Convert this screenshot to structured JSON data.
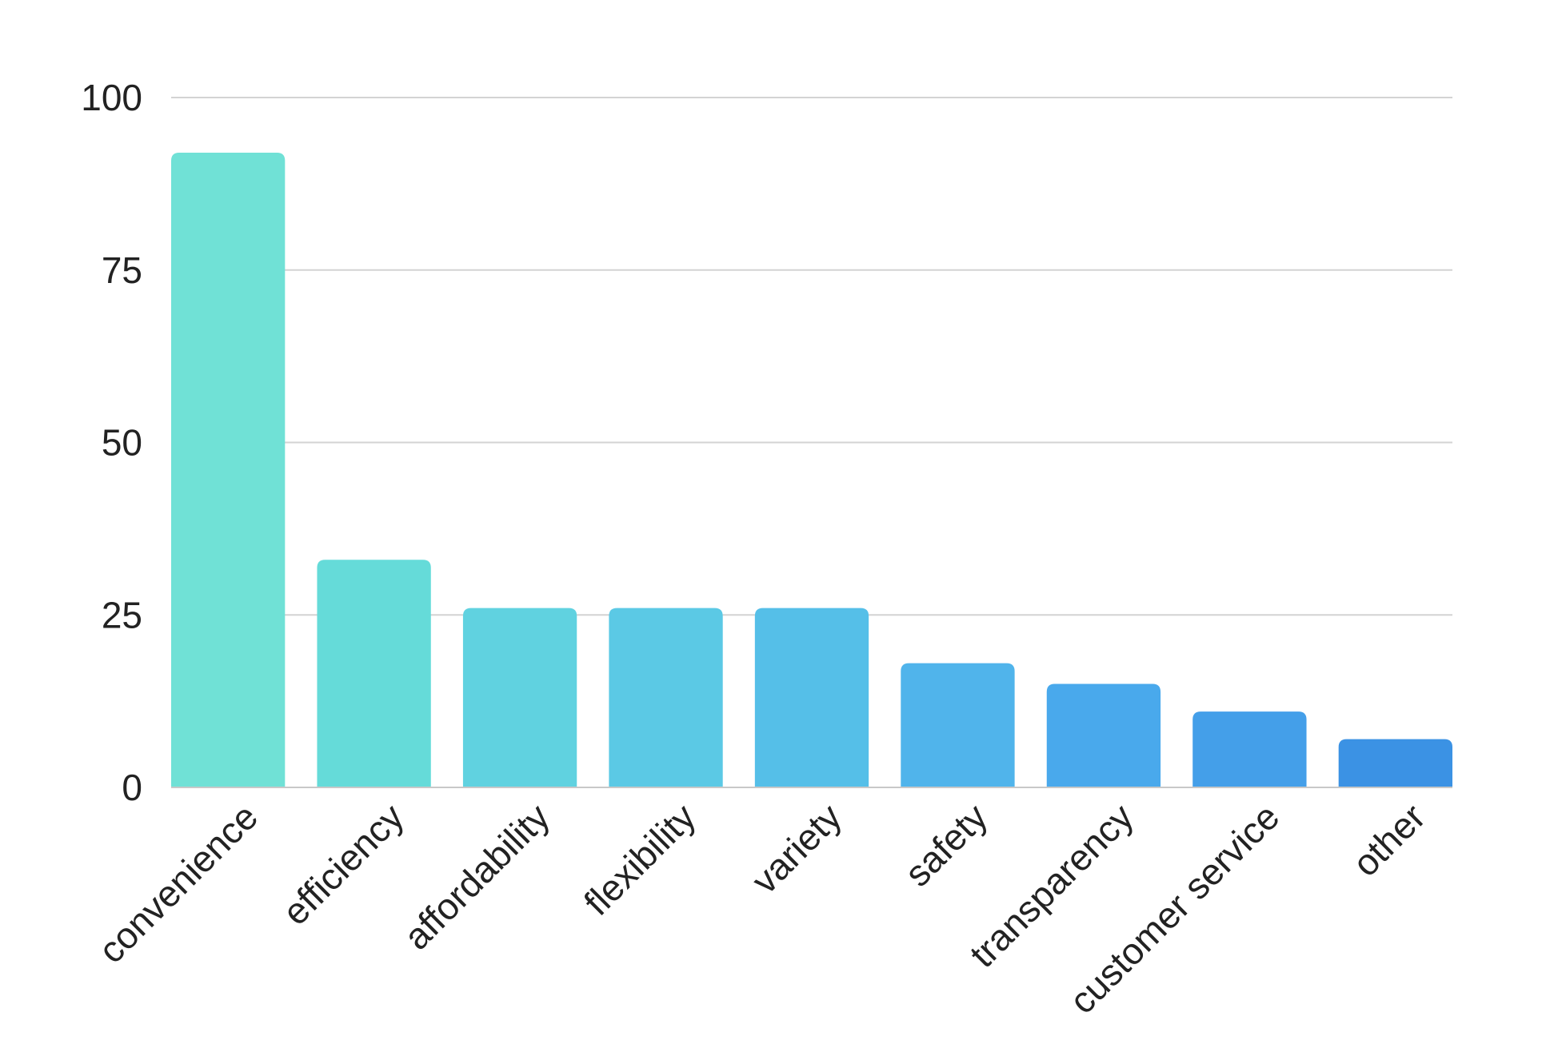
{
  "chart_data": {
    "type": "bar",
    "categories": [
      "convenience",
      "efficiency",
      "affordability",
      "flexibility",
      "variety",
      "safety",
      "transparency",
      "customer service",
      "other"
    ],
    "values": [
      92,
      33,
      26,
      26,
      26,
      18,
      15,
      11,
      7
    ],
    "colors": [
      "#70e1d6",
      "#65dbd9",
      "#60d2e0",
      "#5bc9e5",
      "#55bfe8",
      "#50b4eb",
      "#49a9ec",
      "#449fe9",
      "#3b92e4"
    ],
    "ylim": [
      0,
      100
    ],
    "yticks": [
      0,
      25,
      50,
      75,
      100
    ],
    "grid": true,
    "title": "",
    "xlabel": "",
    "ylabel": ""
  }
}
